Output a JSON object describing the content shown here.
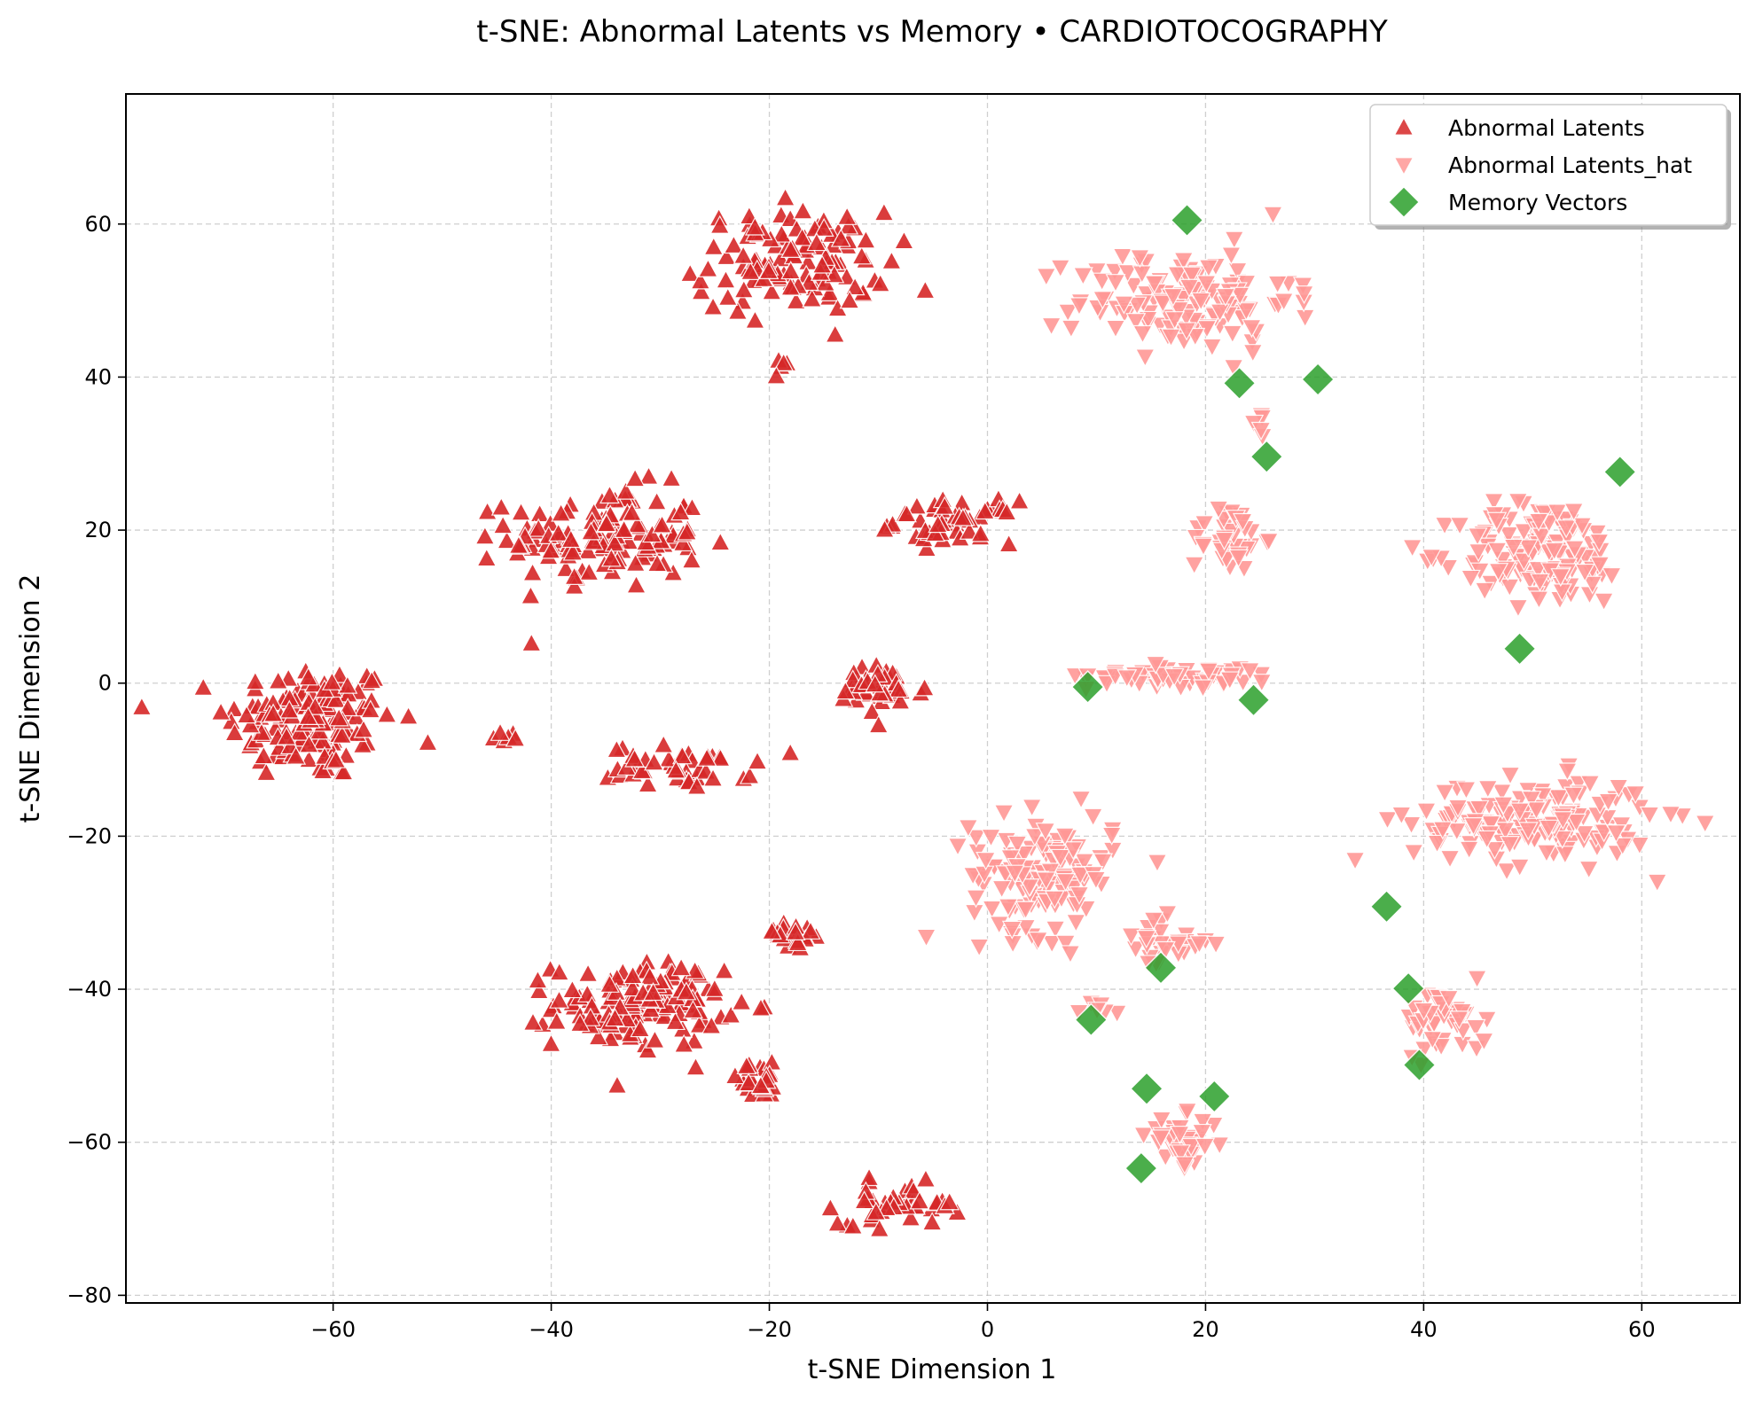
{
  "chart_data": {
    "type": "scatter",
    "title": "t-SNE: Abnormal Latents vs Memory • CARDIOTOCOGRAPHY",
    "xlabel": "t-SNE Dimension 1",
    "ylabel": "t-SNE Dimension 2",
    "xlim": [
      -79,
      69
    ],
    "ylim": [
      -81,
      77
    ],
    "xticks": [
      -60,
      -40,
      -20,
      0,
      20,
      40,
      60
    ],
    "yticks": [
      -80,
      -60,
      -40,
      -20,
      0,
      20,
      40,
      60
    ],
    "xtick_labels": [
      "−60",
      "−40",
      "−20",
      "0",
      "20",
      "40",
      "60"
    ],
    "ytick_labels": [
      "−80",
      "−60",
      "−40",
      "−20",
      "0",
      "20",
      "40",
      "60"
    ],
    "grid": true,
    "legend_position": "top-right",
    "series": [
      {
        "name": "Abnormal Latents",
        "marker": "triangle-up",
        "color": "#d62728",
        "clusters": [
          {
            "center": [
              -62,
              -5
            ],
            "spread": [
              7,
              7
            ],
            "count": 150
          },
          {
            "center": [
              -44,
              -7
            ],
            "spread": [
              1.5,
              1
            ],
            "count": 6
          },
          {
            "center": [
              -35,
              19
            ],
            "spread": [
              8,
              6
            ],
            "count": 140
          },
          {
            "center": [
              -18,
              55
            ],
            "spread": [
              8,
              6
            ],
            "count": 120
          },
          {
            "center": [
              -19,
              42
            ],
            "spread": [
              0.8,
              1.5
            ],
            "count": 5
          },
          {
            "center": [
              -3,
              21
            ],
            "spread": [
              5,
              2.5
            ],
            "count": 50
          },
          {
            "center": [
              -10,
              -1
            ],
            "spread": [
              4,
              3
            ],
            "count": 40
          },
          {
            "center": [
              -28,
              -11
            ],
            "spread": [
              6,
              2.5
            ],
            "count": 45
          },
          {
            "center": [
              -32,
              -42
            ],
            "spread": [
              7,
              5
            ],
            "count": 140
          },
          {
            "center": [
              -18,
              -33
            ],
            "spread": [
              3,
              2
            ],
            "count": 20
          },
          {
            "center": [
              -21,
              -52
            ],
            "spread": [
              3,
              2
            ],
            "count": 25
          },
          {
            "center": [
              -8,
              -68
            ],
            "spread": [
              5,
              2.5
            ],
            "count": 45
          }
        ],
        "points_preview": [
          [
            -70,
            5
          ],
          [
            -62,
            -3
          ],
          [
            -45,
            28
          ],
          [
            -35,
            10
          ],
          [
            -18,
            66
          ],
          [
            -19,
            42
          ],
          [
            3,
            22
          ],
          [
            -7,
            4
          ],
          [
            -21,
            -6
          ],
          [
            -40,
            -38
          ],
          [
            -14,
            -30
          ],
          [
            -8,
            -72
          ]
        ]
      },
      {
        "name": "Abnormal Latents_hat",
        "marker": "triangle-down",
        "color": "#ff9896",
        "clusters": [
          {
            "center": [
              18,
              50
            ],
            "spread": [
              9,
              6
            ],
            "count": 140
          },
          {
            "center": [
              25,
              34
            ],
            "spread": [
              0.6,
              2
            ],
            "count": 5
          },
          {
            "center": [
              22,
              19
            ],
            "spread": [
              3,
              4
            ],
            "count": 40
          },
          {
            "center": [
              51,
              17
            ],
            "spread": [
              7,
              6
            ],
            "count": 150
          },
          {
            "center": [
              18,
              1
            ],
            "spread": [
              8,
              1.3
            ],
            "count": 60
          },
          {
            "center": [
              5,
              -25
            ],
            "spread": [
              6,
              7
            ],
            "count": 140
          },
          {
            "center": [
              16,
              -34
            ],
            "spread": [
              4,
              3
            ],
            "count": 30
          },
          {
            "center": [
              10,
              -42
            ],
            "spread": [
              1.5,
              1.5
            ],
            "count": 6
          },
          {
            "center": [
              18,
              -60
            ],
            "spread": [
              3,
              3
            ],
            "count": 40
          },
          {
            "center": [
              50,
              -18
            ],
            "spread": [
              10,
              5
            ],
            "count": 170
          },
          {
            "center": [
              42,
              -44
            ],
            "spread": [
              3.5,
              4
            ],
            "count": 45
          }
        ],
        "points_preview": [
          [
            9,
            50
          ],
          [
            18,
            60
          ],
          [
            26,
            47
          ],
          [
            25,
            32
          ],
          [
            21,
            18
          ],
          [
            40,
            21
          ],
          [
            56,
            12
          ],
          [
            12,
            2
          ],
          [
            -1,
            -22
          ],
          [
            16,
            -35
          ],
          [
            16,
            -60
          ],
          [
            62,
            -17
          ],
          [
            40,
            -46
          ]
        ]
      },
      {
        "name": "Memory Vectors",
        "marker": "diamond",
        "color": "#2ca02c",
        "points": [
          [
            18.3,
            60.5
          ],
          [
            23.1,
            39.2
          ],
          [
            30.3,
            39.7
          ],
          [
            25.6,
            29.6
          ],
          [
            58.0,
            27.6
          ],
          [
            48.8,
            4.5
          ],
          [
            9.2,
            -0.5
          ],
          [
            24.4,
            -2.2
          ],
          [
            36.6,
            -29.2
          ],
          [
            38.6,
            -39.9
          ],
          [
            15.9,
            -37.2
          ],
          [
            9.5,
            -44.0
          ],
          [
            14.6,
            -53.0
          ],
          [
            20.8,
            -54.0
          ],
          [
            14.1,
            -63.4
          ],
          [
            39.6,
            -49.9
          ]
        ]
      }
    ]
  }
}
